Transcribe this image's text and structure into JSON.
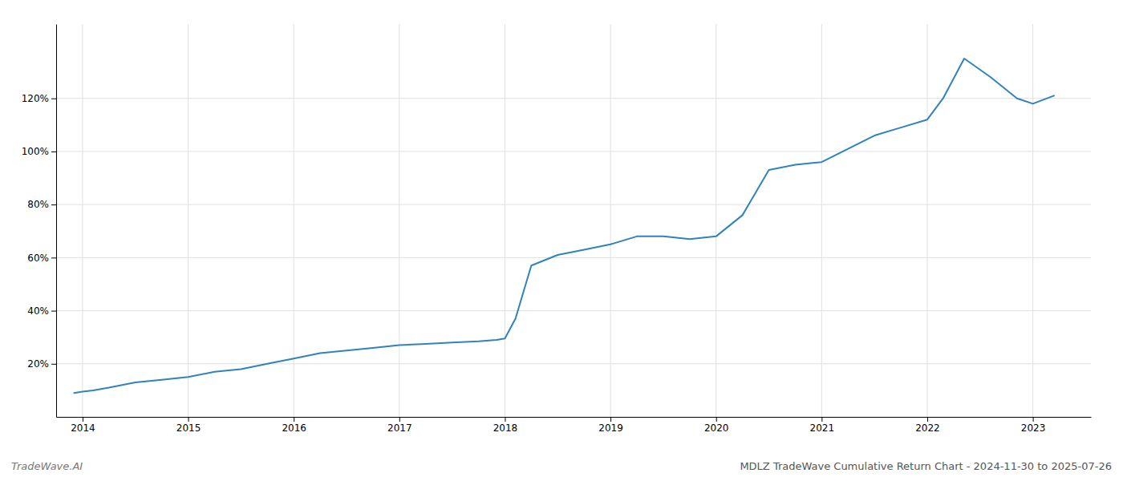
{
  "chart_data": {
    "type": "line",
    "title": "MDLZ TradeWave Cumulative Return Chart - 2024-11-30 to 2025-07-26",
    "annotations": [
      "TradeWave.AI"
    ],
    "color": "#3182bd",
    "x": [
      2013.92,
      2014.0,
      2014.1,
      2014.25,
      2014.5,
      2014.75,
      2015.0,
      2015.25,
      2015.5,
      2015.75,
      2016.0,
      2016.25,
      2016.5,
      2016.75,
      2017.0,
      2017.25,
      2017.5,
      2017.75,
      2017.92,
      2018.0,
      2018.1,
      2018.25,
      2018.5,
      2018.75,
      2019.0,
      2019.25,
      2019.5,
      2019.75,
      2020.0,
      2020.25,
      2020.5,
      2020.75,
      2021.0,
      2021.25,
      2021.5,
      2021.75,
      2022.0,
      2022.15,
      2022.35,
      2022.6,
      2022.85,
      2023.0,
      2023.2
    ],
    "values": [
      9,
      9.5,
      10,
      11,
      13,
      14,
      15,
      17,
      18,
      20,
      22,
      24,
      25,
      26,
      27,
      27.5,
      28,
      28.5,
      29,
      29.5,
      37,
      57,
      61,
      63,
      65,
      68,
      68,
      67,
      68,
      76,
      93,
      95,
      96,
      101,
      106,
      109,
      112,
      120,
      135,
      128,
      120,
      118,
      121
    ],
    "xlim": [
      2013.75,
      2023.55
    ],
    "xticks": [
      2014,
      2015,
      2016,
      2017,
      2018,
      2019,
      2020,
      2021,
      2022,
      2023
    ],
    "ylim": [
      0,
      148
    ],
    "yticks": [
      {
        "value": 20,
        "label": "20%"
      },
      {
        "value": 40,
        "label": "40%"
      },
      {
        "value": 60,
        "label": "60%"
      },
      {
        "value": 80,
        "label": "80%"
      },
      {
        "value": 100,
        "label": "100%"
      },
      {
        "value": 120,
        "label": "120%"
      }
    ],
    "grid": true
  }
}
